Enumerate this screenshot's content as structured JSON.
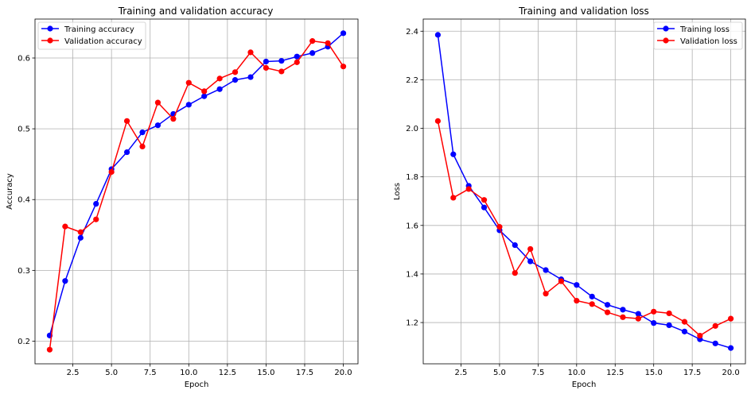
{
  "chart_data": [
    {
      "type": "line",
      "title": "Training and validation accuracy",
      "xlabel": "Epoch",
      "ylabel": "Accuracy",
      "xlim": [
        0.05,
        20.95
      ],
      "ylim": [
        0.168,
        0.655
      ],
      "xticks": [
        2.5,
        5.0,
        7.5,
        10.0,
        12.5,
        15.0,
        17.5,
        20.0
      ],
      "xtick_labels": [
        "2.5",
        "5.0",
        "7.5",
        "10.0",
        "12.5",
        "15.0",
        "17.5",
        "20.0"
      ],
      "yticks": [
        0.2,
        0.3,
        0.4,
        0.5,
        0.6
      ],
      "ytick_labels": [
        "0.2",
        "0.3",
        "0.4",
        "0.5",
        "0.6"
      ],
      "grid": true,
      "legend_position": "top-left",
      "x": [
        1,
        2,
        3,
        4,
        5,
        6,
        7,
        8,
        9,
        10,
        11,
        12,
        13,
        14,
        15,
        16,
        17,
        18,
        19,
        20
      ],
      "series": [
        {
          "name": "Training accuracy",
          "color": "#0000ff",
          "values": [
            0.208,
            0.285,
            0.346,
            0.394,
            0.443,
            0.467,
            0.495,
            0.505,
            0.521,
            0.534,
            0.546,
            0.556,
            0.569,
            0.573,
            0.595,
            0.596,
            0.602,
            0.607,
            0.616,
            0.635
          ]
        },
        {
          "name": "Validation accuracy",
          "color": "#ff0000",
          "values": [
            0.188,
            0.362,
            0.354,
            0.372,
            0.439,
            0.511,
            0.475,
            0.537,
            0.514,
            0.565,
            0.553,
            0.571,
            0.58,
            0.608,
            0.586,
            0.581,
            0.594,
            0.624,
            0.621,
            0.588
          ]
        }
      ]
    },
    {
      "type": "line",
      "title": "Training and validation loss",
      "xlabel": "Epoch",
      "ylabel": "Loss",
      "xlim": [
        0.05,
        20.95
      ],
      "ylim": [
        1.03,
        2.45
      ],
      "xticks": [
        2.5,
        5.0,
        7.5,
        10.0,
        12.5,
        15.0,
        17.5,
        20.0
      ],
      "xtick_labels": [
        "2.5",
        "5.0",
        "7.5",
        "10.0",
        "12.5",
        "15.0",
        "17.5",
        "20.0"
      ],
      "yticks": [
        1.2,
        1.4,
        1.6,
        1.8,
        2.0,
        2.2,
        2.4
      ],
      "ytick_labels": [
        "1.2",
        "1.4",
        "1.6",
        "1.8",
        "2.0",
        "2.2",
        "2.4"
      ],
      "grid": true,
      "legend_position": "top-right",
      "x": [
        1,
        2,
        3,
        4,
        5,
        6,
        7,
        8,
        9,
        10,
        11,
        12,
        13,
        14,
        15,
        16,
        17,
        18,
        19,
        20
      ],
      "series": [
        {
          "name": "Training loss",
          "color": "#0000ff",
          "values": [
            2.385,
            1.893,
            1.763,
            1.674,
            1.58,
            1.519,
            1.452,
            1.416,
            1.378,
            1.355,
            1.307,
            1.273,
            1.253,
            1.236,
            1.198,
            1.189,
            1.163,
            1.131,
            1.114,
            1.095
          ]
        },
        {
          "name": "Validation loss",
          "color": "#ff0000",
          "values": [
            2.03,
            1.714,
            1.75,
            1.705,
            1.594,
            1.404,
            1.503,
            1.319,
            1.37,
            1.29,
            1.276,
            1.242,
            1.222,
            1.216,
            1.245,
            1.238,
            1.203,
            1.146,
            1.186,
            1.216
          ]
        }
      ]
    }
  ]
}
